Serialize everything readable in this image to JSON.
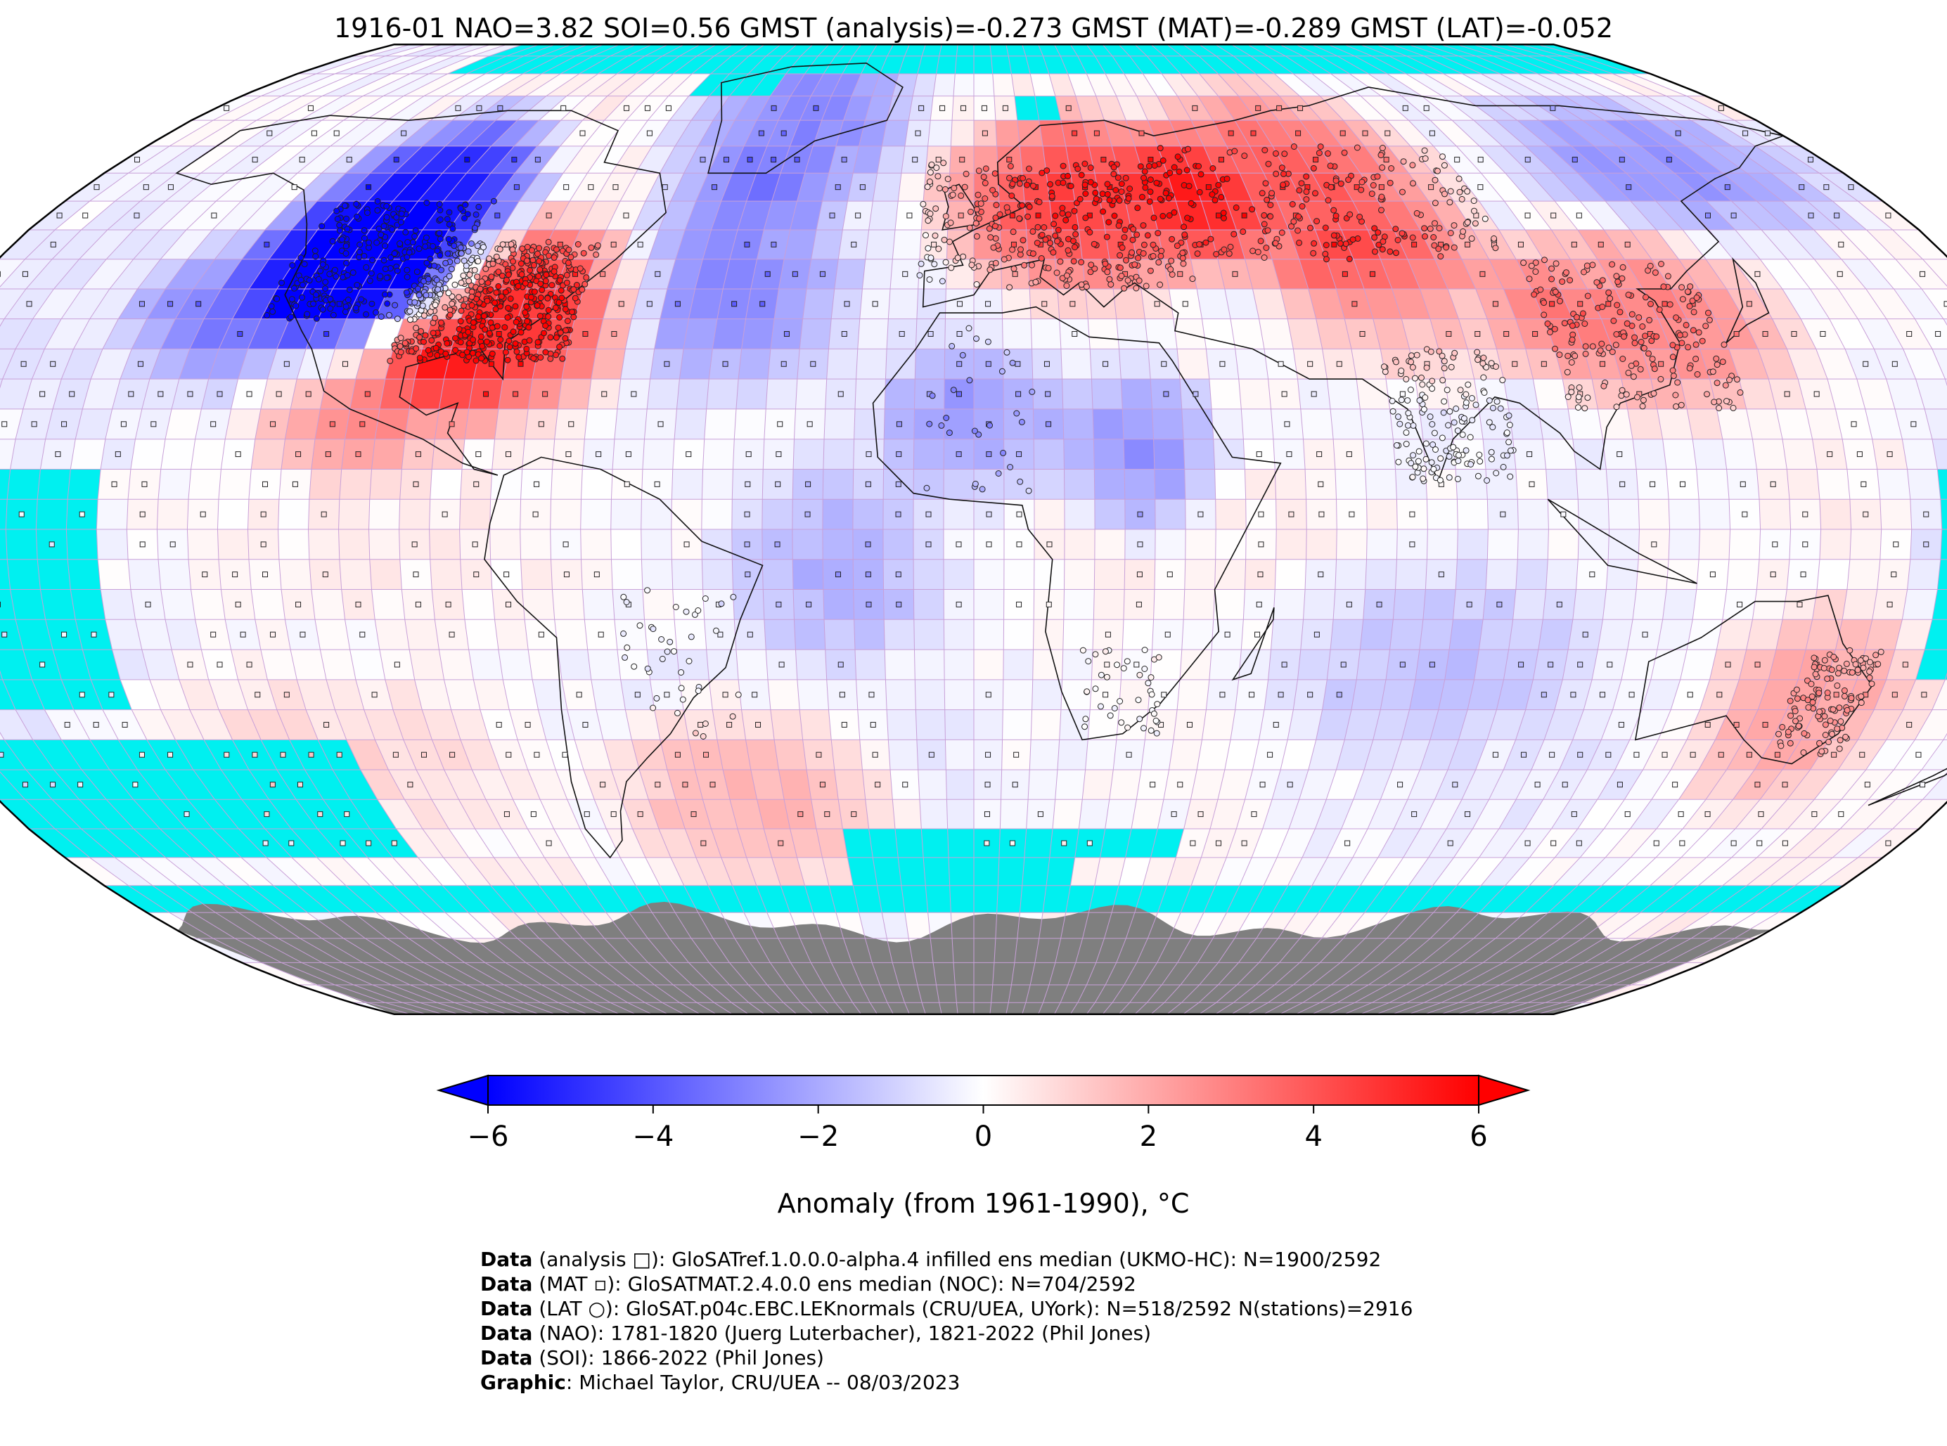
{
  "title": "1916-01 NAO=3.82 SOI=0.56 GMST (analysis)=-0.273 GMST (MAT)=-0.289 GMST (LAT)=-0.052",
  "colors": {
    "sea_ice": "#00f0f0",
    "antarctica": "#7f7f7f",
    "grid": "#c8a0d8",
    "coast": "#111111",
    "cmap_min": "#0000ff",
    "cmap_mid": "#ffffff",
    "cmap_max": "#ff0000"
  },
  "map": {
    "projection": "Robinson",
    "grid_resolution_deg": 5,
    "anomaly_regions": [
      {
        "name": "North America north-west cold",
        "lon": [
          -125,
          -95
        ],
        "lat": [
          40,
          65
        ],
        "value": -5.5
      },
      {
        "name": "Western North America cold",
        "lon": [
          -140,
          -100
        ],
        "lat": [
          30,
          45
        ],
        "value": -3.0
      },
      {
        "name": "Eastern United States warm",
        "lon": [
          -95,
          -65
        ],
        "lat": [
          25,
          45
        ],
        "value": 4.5
      },
      {
        "name": "Mexico warm",
        "lon": [
          -115,
          -90
        ],
        "lat": [
          15,
          30
        ],
        "value": 2.5
      },
      {
        "name": "Greenland cold",
        "lon": [
          -60,
          -20
        ],
        "lat": [
          60,
          80
        ],
        "value": -2.5
      },
      {
        "name": "North Atlantic cold",
        "lon": [
          -60,
          -30
        ],
        "lat": [
          30,
          55
        ],
        "value": -2.0
      },
      {
        "name": "Europe warm",
        "lon": [
          0,
          45
        ],
        "lat": [
          45,
          65
        ],
        "value": 4.0
      },
      {
        "name": "Western Siberia warm",
        "lon": [
          45,
          90
        ],
        "lat": [
          45,
          70
        ],
        "value": 3.5
      },
      {
        "name": "Central Asia warm",
        "lon": [
          60,
          100
        ],
        "lat": [
          30,
          45
        ],
        "value": 2.0
      },
      {
        "name": "East Asia warm",
        "lon": [
          100,
          135
        ],
        "lat": [
          25,
          45
        ],
        "value": 3.0
      },
      {
        "name": "East Siberia cold",
        "lon": [
          120,
          170
        ],
        "lat": [
          55,
          70
        ],
        "value": -2.5
      },
      {
        "name": "Sahara cold",
        "lon": [
          -10,
          10
        ],
        "lat": [
          10,
          25
        ],
        "value": -2.0
      },
      {
        "name": "Sudan cold",
        "lon": [
          20,
          35
        ],
        "lat": [
          5,
          20
        ],
        "value": -2.5
      },
      {
        "name": "Australia warm",
        "lon": [
          130,
          155
        ],
        "lat": [
          -40,
          -20
        ],
        "value": 2.0
      },
      {
        "name": "South Pacific warm",
        "lon": [
          -150,
          -90
        ],
        "lat": [
          -45,
          -30
        ],
        "value": 1.0
      },
      {
        "name": "South Atlantic warm",
        "lon": [
          -60,
          -20
        ],
        "lat": [
          -55,
          -35
        ],
        "value": 2.0
      },
      {
        "name": "Tropical Pacific cool",
        "lon": [
          160,
          180
        ],
        "lat": [
          -15,
          15
        ],
        "value": -1.5
      },
      {
        "name": "Tropical Atlantic cool",
        "lon": [
          -35,
          -10
        ],
        "lat": [
          -15,
          5
        ],
        "value": -1.5
      },
      {
        "name": "Indian Ocean cool",
        "lon": [
          55,
          95
        ],
        "lat": [
          -30,
          -10
        ],
        "value": -1.0
      }
    ],
    "sea_ice_regions": [
      {
        "lon": [
          -180,
          -145
        ],
        "lat": [
          -30,
          10
        ]
      },
      {
        "lon": [
          160,
          180
        ],
        "lat": [
          -25,
          10
        ]
      },
      {
        "lon": [
          -180,
          -110
        ],
        "lat": [
          -55,
          -35
        ]
      },
      {
        "lon": [
          -25,
          20
        ],
        "lat": [
          -60,
          -50
        ]
      },
      {
        "lon": [
          20,
          40
        ],
        "lat": [
          -55,
          -50
        ]
      },
      {
        "lon": [
          -180,
          180
        ],
        "lat": [
          -65,
          -60
        ]
      },
      {
        "lon": [
          -140,
          180
        ],
        "lat": [
          80,
          90
        ]
      },
      {
        "lon": [
          -70,
          -50
        ],
        "lat": [
          75,
          80
        ]
      },
      {
        "lon": [
          10,
          20
        ],
        "lat": [
          70,
          75
        ]
      }
    ],
    "antarctica_lat": -65
  },
  "colorbar": {
    "min": -6,
    "max": 6,
    "ticks": [
      "−6",
      "−4",
      "−2",
      "0",
      "2",
      "4",
      "6"
    ],
    "label": "Anomaly (from 1961-1990), °C",
    "extend": "both"
  },
  "credits": [
    {
      "bold": "Data",
      "text": " (analysis □): GloSATref.1.0.0.0-alpha.4 infilled ens median (UKMO-HC): N=1900/2592"
    },
    {
      "bold": "Data",
      "text": " (MAT ▫): GloSATMAT.2.4.0.0 ens median (NOC): N=704/2592"
    },
    {
      "bold": "Data",
      "text": " (LAT ○): GloSAT.p04c.EBC.LEKnormals (CRU/UEA, UYork): N=518/2592 N(stations)=2916"
    },
    {
      "bold": "Data",
      "text": " (NAO): 1781-1820 (Juerg Luterbacher), 1821-2022 (Phil Jones)"
    },
    {
      "bold": "Data",
      "text": " (SOI): 1866-2022 (Phil Jones)"
    },
    {
      "bold": "Graphic",
      "text": ": Michael Taylor, CRU/UEA -- 08/03/2023"
    }
  ]
}
